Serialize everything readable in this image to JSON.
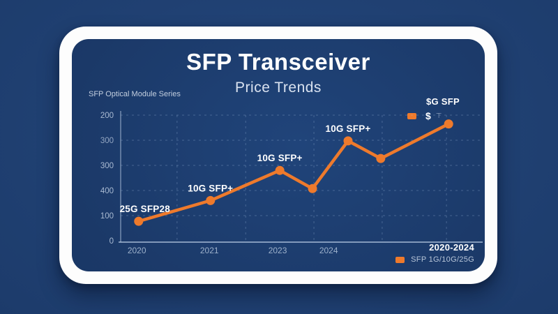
{
  "header": {
    "title": "SFP Transceiver",
    "subtitle": "Price Trends",
    "caption": "SFP Optical Module Series"
  },
  "top_legend": {
    "heading": "$G SFP",
    "symbol": "$",
    "whisker_glyph": "⊤",
    "swatch_color": "#ee7a2c"
  },
  "bottom_legend": {
    "range_label": "2020-2024",
    "series_label": "SFP 1G/10G/25G",
    "swatch_color": "#ee7a2c"
  },
  "colors": {
    "accent_orange": "#ee7a2c",
    "panel_blue": "#1b3968",
    "background_blue": "#1d3c6c",
    "text_white": "#ffffff"
  },
  "chart_data": {
    "type": "line",
    "title": "SFP Transceiver Price Trends",
    "xlabel": "",
    "ylabel": "",
    "ylim": [
      0,
      200
    ],
    "grid": true,
    "legend_position": "bottom-right",
    "y_tick_labels_top_to_bottom": [
      "200",
      "300",
      "300",
      "400",
      "100",
      "0"
    ],
    "x_ticks": [
      {
        "f": 0.045,
        "label": "2020"
      },
      {
        "f": 0.247,
        "label": "2021"
      },
      {
        "f": 0.437,
        "label": "2023"
      },
      {
        "f": 0.579,
        "label": "2024"
      }
    ],
    "v_gridlines_f": [
      0.157,
      0.348,
      0.538,
      0.728,
      0.907
    ],
    "series": [
      {
        "name": "SFP 1G/10G/25G",
        "color": "#ee7a2c",
        "points": [
          {
            "f": 0.05,
            "value": 31,
            "label": "25G SFP28",
            "label_dx": 9
          },
          {
            "f": 0.25,
            "value": 64,
            "label": "10G SFP+"
          },
          {
            "f": 0.443,
            "value": 112,
            "label": "10G SFP+"
          },
          {
            "f": 0.534,
            "value": 83
          },
          {
            "f": 0.633,
            "value": 159,
            "label": "10G SFP+"
          },
          {
            "f": 0.724,
            "value": 131
          },
          {
            "f": 0.913,
            "value": 186
          }
        ]
      }
    ]
  }
}
